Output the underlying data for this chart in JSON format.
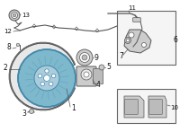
{
  "bg_color": "#ffffff",
  "fig_width": 2.0,
  "fig_height": 1.47,
  "dpi": 100,
  "lc": "#555555",
  "rotor_fill": "#7db8cc",
  "rotor_edge": "#4488aa",
  "hub_fill": "#aaccdd",
  "gray1": "#bbbbbb",
  "gray2": "#cccccc",
  "gray3": "#e8e8e8",
  "box_fill": "#f5f5f5",
  "box_edge": "#666666",
  "label_color": "#111111",
  "fs": 5.5
}
